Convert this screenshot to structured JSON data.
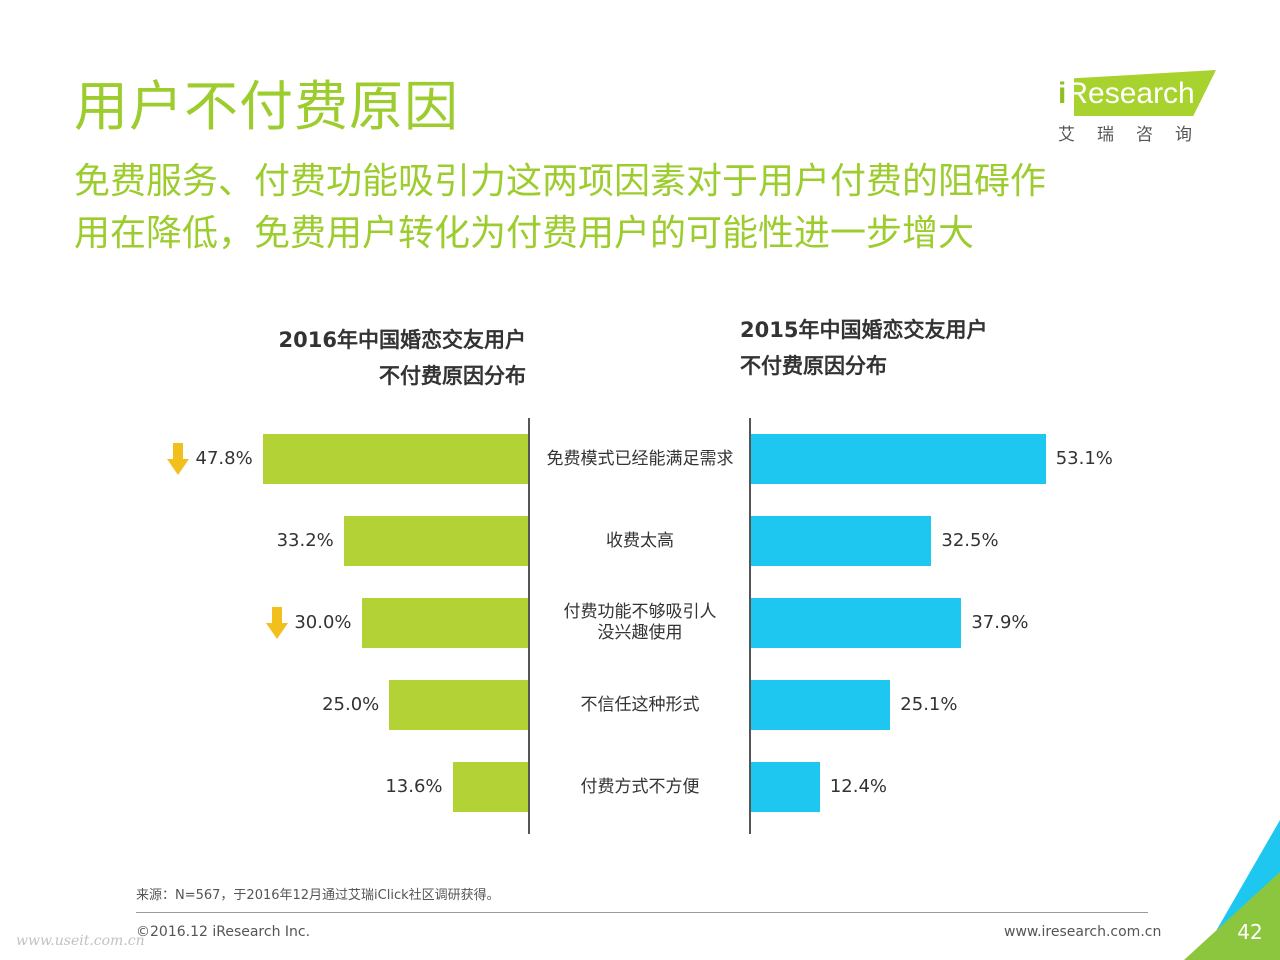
{
  "page": {
    "title": "用户不付费原因",
    "subtitle_lines": [
      "免费服务、付费功能吸引力这两项因素对于用户付费的阻碍作",
      "用在降低，免费用户转化为付费用户的可能性进一步增大"
    ]
  },
  "logo": {
    "brand_i": "i",
    "brand_rest": "Research",
    "chinese": "艾瑞咨询"
  },
  "colors": {
    "accent_green": "#9dcc2e",
    "bar_2016": "#b2d235",
    "bar_2015": "#1ec7f0",
    "arrow": "#f2c01c"
  },
  "chart_data": [
    {
      "type": "bar",
      "orientation": "horizontal",
      "direction": "leftward",
      "title_lines": [
        "2016年中国婚恋交友用户",
        "不付费原因分布"
      ],
      "categories": [
        "免费模式已经能满足需求",
        "收费太高",
        "付费功能不够吸引人没兴趣使用",
        "不信任这种形式",
        "付费方式不方便"
      ],
      "values": [
        47.8,
        33.2,
        30.0,
        25.0,
        13.6
      ],
      "value_labels": [
        "47.8%",
        "33.2%",
        "30.0%",
        "25.0%",
        "13.6%"
      ],
      "unit": "%",
      "xlim": [
        0,
        55
      ],
      "decreased_categories": [
        "免费模式已经能满足需求",
        "付费功能不够吸引人没兴趣使用"
      ]
    },
    {
      "type": "bar",
      "orientation": "horizontal",
      "direction": "rightward",
      "title_lines": [
        "2015年中国婚恋交友用户",
        "不付费原因分布"
      ],
      "categories": [
        "免费模式已经能满足需求",
        "收费太高",
        "付费功能不够吸引人没兴趣使用",
        "不信任这种形式",
        "付费方式不方便"
      ],
      "values": [
        53.1,
        32.5,
        37.9,
        25.1,
        12.4
      ],
      "value_labels": [
        "53.1%",
        "32.5%",
        "37.9%",
        "25.1%",
        "12.4%"
      ],
      "unit": "%",
      "xlim": [
        0,
        55
      ]
    }
  ],
  "category_labels": [
    [
      "免费模式已经能满足需求"
    ],
    [
      "收费太高"
    ],
    [
      "付费功能不够吸引人",
      "没兴趣使用"
    ],
    [
      "不信任这种形式"
    ],
    [
      "付费方式不方便"
    ]
  ],
  "footer": {
    "source": "来源：N=567，于2016年12月通过艾瑞iClick社区调研获得。",
    "copyright": "©2016.12 iResearch Inc.",
    "website": "www.iresearch.com.cn",
    "page_number": "42",
    "watermark": "www.useit.com.cn"
  }
}
